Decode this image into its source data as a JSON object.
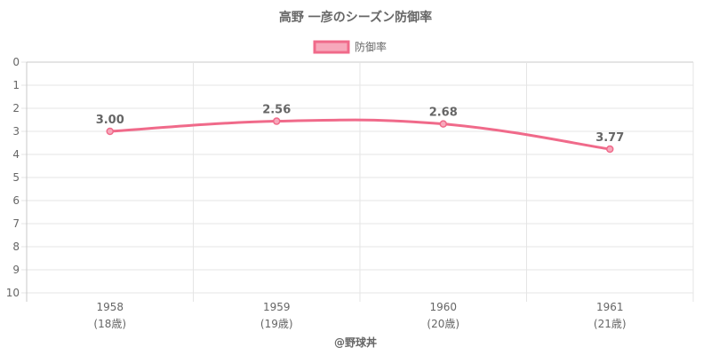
{
  "chart_data": {
    "type": "line",
    "title": "高野 一彦のシーズン防御率",
    "categories": [
      "1958",
      "1959",
      "1960",
      "1961"
    ],
    "category_sublabels": [
      "(18歳)",
      "(19歳)",
      "(20歳)",
      "(21歳)"
    ],
    "series": [
      {
        "name": "防御率",
        "values": [
          3.0,
          2.56,
          2.68,
          3.77
        ],
        "labels": [
          "3.00",
          "2.56",
          "2.68",
          "3.77"
        ]
      }
    ],
    "ylim": [
      0,
      10
    ],
    "y_ticks": [
      "0",
      "1",
      "2",
      "3",
      "4",
      "5",
      "6",
      "7",
      "8",
      "9",
      "10"
    ],
    "y_reversed": true,
    "grid": true,
    "legend_position": "top",
    "credit": "@野球丼",
    "colors": {
      "line": "#f06a8a",
      "fill": "#f7a8bb",
      "grid": "#e5e5e5",
      "axis": "#c8c8c8"
    }
  }
}
